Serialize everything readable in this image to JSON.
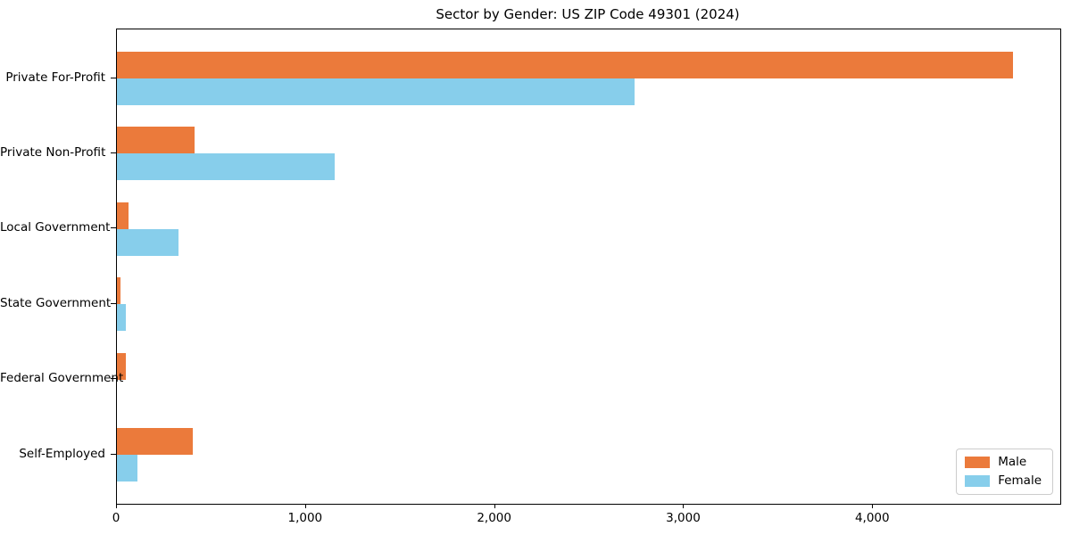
{
  "chart_data": {
    "type": "bar",
    "orientation": "horizontal",
    "title": "Sector by Gender: US ZIP Code 49301 (2024)",
    "categories": [
      "Private For-Profit",
      "Private Non-Profit",
      "Local Government",
      "State Government",
      "Federal Government",
      "Self-Employed"
    ],
    "series": [
      {
        "name": "Male",
        "color": "#EB7A3B",
        "values": [
          4740,
          410,
          60,
          20,
          45,
          400
        ]
      },
      {
        "name": "Female",
        "color": "#87CEEB",
        "values": [
          2740,
          1150,
          325,
          45,
          0,
          110
        ]
      }
    ],
    "xlabel": "",
    "ylabel": "",
    "xlim": [
      0,
      4990
    ],
    "x_ticks": [
      0,
      1000,
      2000,
      3000,
      4000
    ],
    "x_tick_labels": [
      "0",
      "1,000",
      "2,000",
      "3,000",
      "4,000"
    ],
    "grid": false,
    "legend_position": "lower right",
    "background_color": "#ffffff",
    "spine_color": "#000000"
  }
}
